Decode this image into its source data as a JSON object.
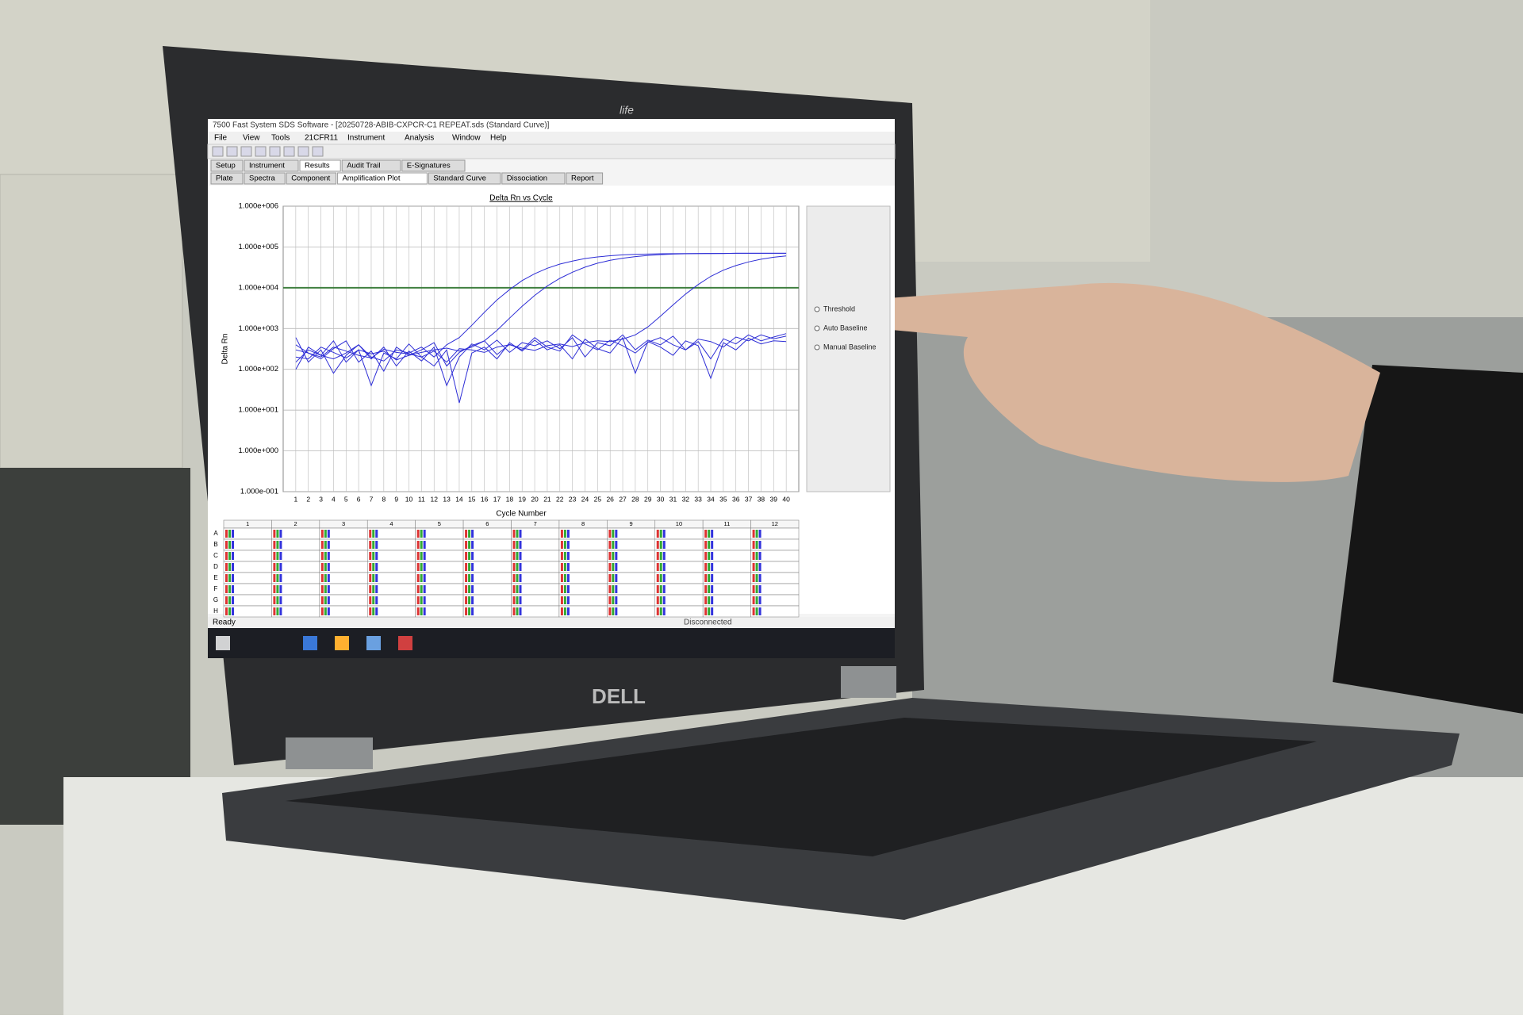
{
  "window": {
    "title": "7500 Fast System SDS Software - [20250728-ABIB-CXPCR-C1 REPEAT.sds (Standard Curve)]",
    "menu": [
      "File",
      "View",
      "Tools",
      "21CFR11",
      "Instrument",
      "Analysis",
      "Window",
      "Help"
    ],
    "tabs": [
      "Setup",
      "Instrument",
      "Results",
      "Audit Trail",
      "E-Signatures"
    ],
    "subtabs": [
      "Plate",
      "Spectra",
      "Component",
      "Amplification Plot",
      "Standard Curve",
      "Dissociation",
      "Report"
    ],
    "side_panel": [
      "Threshold",
      "Auto Baseline",
      "Manual Baseline"
    ],
    "status": "Ready",
    "connection": "Disconnected"
  },
  "branding": {
    "bezel": "life",
    "laptop": "DELL"
  },
  "chart_data": {
    "type": "line",
    "title": "Delta Rn vs Cycle",
    "x_label": "Cycle Number",
    "y_label": "Delta Rn",
    "log_y": true,
    "grid": true,
    "x": [
      1,
      2,
      3,
      4,
      5,
      6,
      7,
      8,
      9,
      10,
      11,
      12,
      13,
      14,
      15,
      16,
      17,
      18,
      19,
      20,
      21,
      22,
      23,
      24,
      25,
      26,
      27,
      28,
      29,
      30,
      31,
      32,
      33,
      34,
      35,
      36,
      37,
      38,
      39,
      40
    ],
    "xlim": [
      0,
      41
    ],
    "xticks": [
      1,
      2,
      3,
      4,
      5,
      6,
      7,
      8,
      9,
      10,
      11,
      12,
      13,
      14,
      15,
      16,
      17,
      18,
      19,
      20,
      21,
      22,
      23,
      24,
      25,
      26,
      27,
      28,
      29,
      30,
      31,
      32,
      33,
      34,
      35,
      36,
      37,
      38,
      39,
      40
    ],
    "ylim": [
      0.1,
      1000000
    ],
    "yticks": [
      {
        "value": 0.1,
        "label": "1.000e-001"
      },
      {
        "value": 1,
        "label": "1.000e+000"
      },
      {
        "value": 10,
        "label": "1.000e+001"
      },
      {
        "value": 100,
        "label": "1.000e+002"
      },
      {
        "value": 1000,
        "label": "1.000e+003"
      },
      {
        "value": 10000,
        "label": "1.000e+004"
      },
      {
        "value": 100000,
        "label": "1.000e+005"
      },
      {
        "value": 1000000,
        "label": "1.000e+006"
      }
    ],
    "threshold": 10000,
    "threshold_color": "#3f7f3f",
    "series": [
      {
        "color": "#2d2dd6",
        "values": [
          150,
          300,
          220,
          180,
          250,
          400,
          200,
          160,
          300,
          250,
          350,
          200,
          400,
          600,
          1200,
          2500,
          5000,
          9000,
          15000,
          22000,
          30000,
          38000,
          45000,
          52000,
          57000,
          61000,
          64000,
          66000,
          67000,
          68000,
          68500,
          69000,
          69000,
          69500,
          69500,
          70000,
          70000,
          70000,
          70000,
          70000
        ]
      },
      {
        "color": "#2d2dd6",
        "values": [
          200,
          180,
          350,
          260,
          190,
          300,
          240,
          280,
          170,
          220,
          260,
          300,
          330,
          280,
          350,
          500,
          900,
          1800,
          3500,
          6500,
          11000,
          17000,
          24000,
          32000,
          40000,
          47000,
          53000,
          58000,
          62000,
          65000,
          67000,
          68000,
          69000,
          69000,
          69500,
          70000,
          70000,
          70000,
          70000,
          70000
        ]
      },
      {
        "color": "#2d2dd6",
        "values": [
          300,
          250,
          200,
          350,
          280,
          220,
          190,
          310,
          260,
          240,
          200,
          280,
          150,
          320,
          300,
          260,
          350,
          400,
          330,
          290,
          380,
          420,
          360,
          450,
          500,
          480,
          550,
          700,
          1100,
          2000,
          3800,
          7000,
          12000,
          19000,
          27000,
          35000,
          43000,
          50000,
          56000,
          60000
        ]
      },
      {
        "color": "#2d2dd6",
        "values": [
          400,
          250,
          180,
          320,
          500,
          150,
          280,
          90,
          350,
          220,
          300,
          450,
          120,
          260,
          380,
          500,
          230,
          410,
          300,
          600,
          350,
          280,
          700,
          420,
          300,
          520,
          380,
          250,
          460,
          600,
          400,
          300,
          550,
          480,
          350,
          620,
          500,
          700,
          560,
          650
        ]
      },
      {
        "color": "#2d2dd6",
        "values": [
          600,
          150,
          300,
          80,
          220,
          400,
          180,
          350,
          120,
          280,
          160,
          350,
          40,
          200,
          420,
          300,
          520,
          260,
          450,
          380,
          500,
          320,
          600,
          200,
          450,
          380,
          700,
          300,
          520,
          400,
          650,
          300,
          480,
          180,
          560,
          420,
          700,
          500,
          620,
          750
        ]
      },
      {
        "color": "#2d2dd6",
        "values": [
          100,
          350,
          220,
          500,
          150,
          300,
          40,
          250,
          180,
          420,
          200,
          120,
          300,
          15,
          250,
          350,
          180,
          450,
          280,
          520,
          300,
          400,
          180,
          550,
          320,
          250,
          600,
          80,
          480,
          350,
          220,
          500,
          380,
          60,
          450,
          300,
          580,
          420,
          500,
          480
        ]
      }
    ]
  },
  "plate": {
    "columns": [
      1,
      2,
      3,
      4,
      5,
      6,
      7,
      8,
      9,
      10,
      11,
      12
    ],
    "rows": [
      "A",
      "B",
      "C",
      "D",
      "E",
      "F",
      "G",
      "H"
    ]
  }
}
